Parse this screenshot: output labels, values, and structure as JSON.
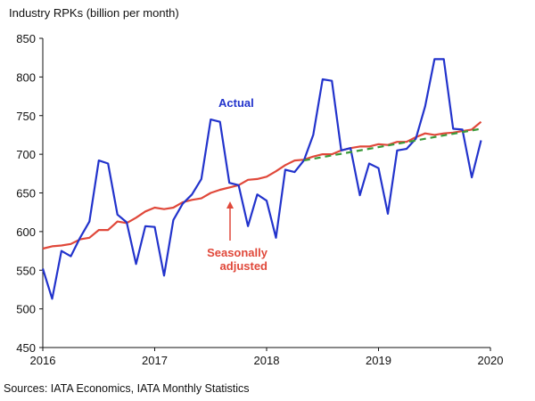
{
  "chart_data": {
    "type": "line",
    "title": "Industry RPKs (billion per month)",
    "source": "Sources: IATA Economics, IATA Monthly Statistics",
    "xlim": [
      2016,
      2020
    ],
    "ylim": [
      450,
      850
    ],
    "x_ticks": [
      "2016",
      "2017",
      "2018",
      "2019",
      "2020"
    ],
    "y_ticks": [
      "450",
      "500",
      "550",
      "600",
      "650",
      "700",
      "750",
      "800",
      "850"
    ],
    "grid": false,
    "x_start": "2016-01",
    "frequency": "monthly",
    "series": [
      {
        "name": "Actual",
        "color": "#2233cc",
        "style": "solid",
        "values": [
          552,
          513,
          575,
          568,
          592,
          613,
          692,
          688,
          622,
          612,
          558,
          607,
          606,
          543,
          615,
          636,
          648,
          668,
          745,
          742,
          663,
          660,
          607,
          648,
          640,
          592,
          680,
          677,
          692,
          725,
          797,
          795,
          705,
          708,
          647,
          688,
          682,
          623,
          705,
          707,
          720,
          762,
          823,
          823,
          733,
          732,
          670,
          718
        ]
      },
      {
        "name": "Seasonally adjusted",
        "color": "#e0483a",
        "style": "solid",
        "values": [
          578,
          581,
          582,
          584,
          590,
          592,
          602,
          602,
          613,
          611,
          618,
          626,
          631,
          629,
          631,
          638,
          641,
          643,
          650,
          654,
          657,
          660,
          667,
          668,
          671,
          678,
          686,
          692,
          693,
          697,
          700,
          700,
          705,
          708,
          710,
          710,
          713,
          712,
          716,
          716,
          722,
          727,
          725,
          727,
          728,
          730,
          732,
          742
        ]
      },
      {
        "color": "#3a9a3a",
        "style": "dashed",
        "x_start": "2018-05",
        "values_endpoints": [
          692,
          733
        ]
      }
    ],
    "annotations": [
      {
        "text": "Actual",
        "color": "#2233cc"
      },
      {
        "text": "Seasonally",
        "color": "#e0483a"
      },
      {
        "text": "adjusted",
        "color": "#e0483a"
      }
    ]
  }
}
